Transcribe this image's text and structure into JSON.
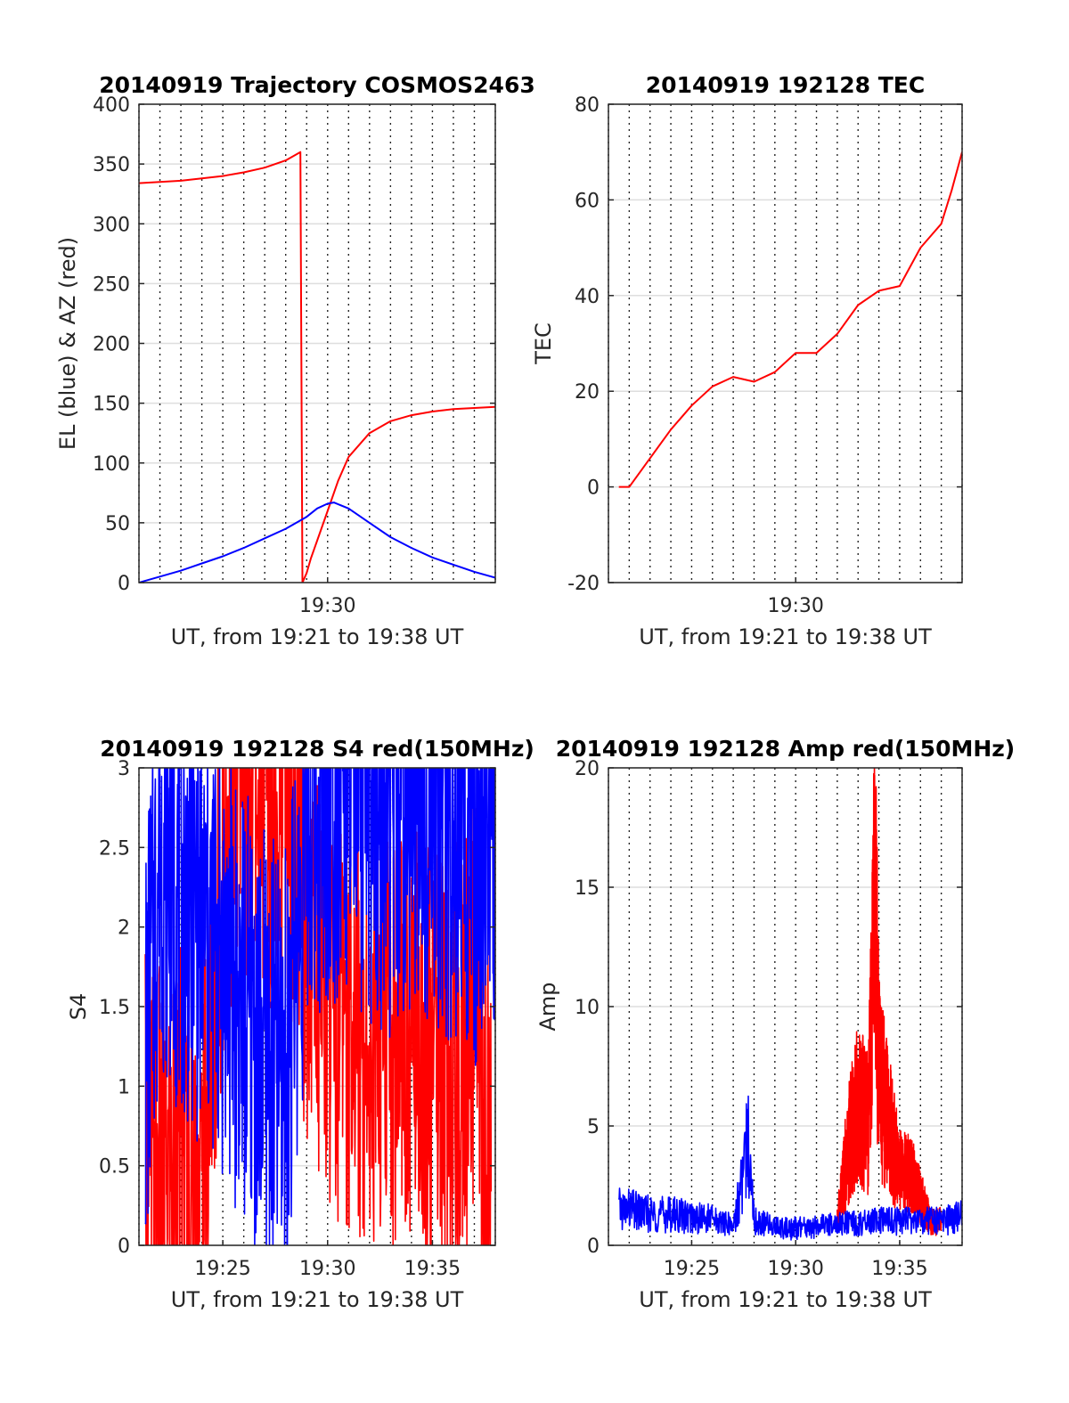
{
  "chart_data": [
    {
      "type": "line",
      "title": "20140919 Trajectory COSMOS2463",
      "xlabel": "UT, from 19:21 to 19:38 UT",
      "ylabel": "EL (blue) & AZ (red)",
      "xlim": [
        "19:21",
        "19:38"
      ],
      "ylim": [
        0,
        400
      ],
      "yticks": [
        0,
        50,
        100,
        150,
        200,
        250,
        300,
        350,
        400
      ],
      "xticks": [
        {
          "value": "19:30",
          "label": "19:30"
        }
      ],
      "grid": true,
      "series": [
        {
          "color": "#ff0000",
          "x": [
            "19:21",
            "19:22",
            "19:23",
            "19:24",
            "19:25",
            "19:26",
            "19:27",
            "19:28",
            "19:28.7",
            "19:28.8",
            "19:29.0",
            "19:29.2",
            "19:29.5",
            "19:30",
            "19:30.5",
            "19:31",
            "19:32",
            "19:33",
            "19:34",
            "19:35",
            "19:36",
            "19:37",
            "19:38"
          ],
          "y": [
            334,
            335,
            336,
            338,
            340,
            343,
            347,
            353,
            360,
            0,
            8,
            20,
            35,
            60,
            85,
            105,
            125,
            135,
            140,
            143,
            145,
            146,
            147
          ]
        },
        {
          "color": "#0000ff",
          "x": [
            "19:21",
            "19:22",
            "19:23",
            "19:24",
            "19:25",
            "19:26",
            "19:27",
            "19:28",
            "19:29",
            "19:29.5",
            "19:30",
            "19:30.3",
            "19:31",
            "19:32",
            "19:33",
            "19:34",
            "19:35",
            "19:36",
            "19:37",
            "19:38"
          ],
          "y": [
            0,
            5,
            10,
            16,
            22,
            29,
            37,
            45,
            55,
            62,
            66,
            67,
            62,
            50,
            38,
            29,
            21,
            15,
            9,
            4
          ]
        }
      ]
    },
    {
      "type": "line",
      "title": "20140919 192128 TEC",
      "xlabel": "UT, from 19:21 to 19:38 UT",
      "ylabel": "TEC",
      "xlim": [
        "19:21",
        "19:38"
      ],
      "ylim": [
        -20,
        80
      ],
      "yticks": [
        -20,
        0,
        20,
        40,
        60,
        80
      ],
      "xticks": [
        {
          "value": "19:30",
          "label": "19:30"
        }
      ],
      "grid": true,
      "series": [
        {
          "color": "#ff0000",
          "x": [
            "19:21.5",
            "19:22",
            "19:23",
            "19:24",
            "19:25",
            "19:26",
            "19:27",
            "19:28",
            "19:29",
            "19:30",
            "19:31",
            "19:32",
            "19:33",
            "19:34",
            "19:35",
            "19:36",
            "19:37",
            "19:37.5",
            "19:38"
          ],
          "y": [
            0,
            0,
            6,
            12,
            17,
            21,
            23,
            22,
            24,
            28,
            28,
            32,
            38,
            41,
            42,
            50,
            55,
            62,
            70
          ]
        }
      ]
    },
    {
      "type": "line",
      "title": "20140919 192128 S4 red(150MHz)",
      "xlabel": "UT, from 19:21 to 19:38 UT",
      "ylabel": "S4",
      "xlim": [
        "19:21",
        "19:38"
      ],
      "ylim": [
        0,
        3
      ],
      "yticks": [
        0,
        0.5,
        1,
        1.5,
        2,
        2.5,
        3
      ],
      "xticks": [
        {
          "value": "19:25",
          "label": "19:25"
        },
        {
          "value": "19:30",
          "label": "19:30"
        },
        {
          "value": "19:35",
          "label": "19:35"
        }
      ],
      "grid": true,
      "series": [
        {
          "color": "#ff0000",
          "x": [
            "19:21.3",
            "19:22",
            "19:23",
            "19:24",
            "19:25",
            "19:26",
            "19:27",
            "19:28",
            "19:29",
            "19:30",
            "19:31",
            "19:32",
            "19:33",
            "19:34",
            "19:35",
            "19:36",
            "19:37",
            "19:37.8"
          ],
          "y": [
            0.5,
            0.4,
            0.5,
            0.3,
            2.5,
            3,
            2.8,
            3,
            2,
            1.6,
            1.5,
            1.4,
            1.3,
            1.4,
            1.2,
            1.1,
            1.5,
            0.3
          ]
        },
        {
          "color": "#0000ff",
          "x": [
            "19:21.3",
            "19:22",
            "19:23",
            "19:24",
            "19:25",
            "19:26",
            "19:27",
            "19:28",
            "19:29",
            "19:30",
            "19:31",
            "19:32",
            "19:33",
            "19:34",
            "19:35",
            "19:36",
            "19:37",
            "19:38"
          ],
          "y": [
            1.2,
            2.5,
            2.2,
            2.0,
            1.8,
            1.5,
            1.2,
            1.1,
            2.6,
            2.9,
            2.9,
            2.8,
            2.7,
            2.9,
            2.8,
            2.6,
            2.5,
            2.8
          ]
        }
      ]
    },
    {
      "type": "line",
      "title": "20140919 192128 Amp red(150MHz)",
      "xlabel": "UT, from 19:21 to 19:38 UT",
      "ylabel": "Amp",
      "xlim": [
        "19:21",
        "19:38"
      ],
      "ylim": [
        0,
        20
      ],
      "yticks": [
        0,
        5,
        10,
        15,
        20
      ],
      "xticks": [
        {
          "value": "19:25",
          "label": "19:25"
        },
        {
          "value": "19:30",
          "label": "19:30"
        },
        {
          "value": "19:35",
          "label": "19:35"
        }
      ],
      "grid": true,
      "series": [
        {
          "color": "#ff0000",
          "x": [
            "19:32",
            "19:32.5",
            "19:33",
            "19:33.5",
            "19:33.8",
            "19:34",
            "19:34.5",
            "19:35",
            "19:35.5",
            "19:36",
            "19:36.5",
            "19:37"
          ],
          "y": [
            1,
            4,
            6,
            5,
            15,
            7,
            5,
            3,
            3,
            2,
            1,
            1
          ]
        },
        {
          "color": "#0000ff",
          "x": [
            "19:21.5",
            "19:22",
            "19:23",
            "19:24",
            "19:25",
            "19:26",
            "19:27",
            "19:27.5",
            "19:27.8",
            "19:28",
            "19:29",
            "19:30",
            "19:31",
            "19:32",
            "19:33",
            "19:34",
            "19:35",
            "19:36",
            "19:37",
            "19:38"
          ],
          "y": [
            1.5,
            1.5,
            1.3,
            1.3,
            1.2,
            1.1,
            0.8,
            3,
            4.7,
            1,
            0.8,
            0.7,
            0.8,
            0.9,
            0.9,
            1,
            1,
            1,
            1,
            1.2
          ]
        }
      ]
    }
  ]
}
